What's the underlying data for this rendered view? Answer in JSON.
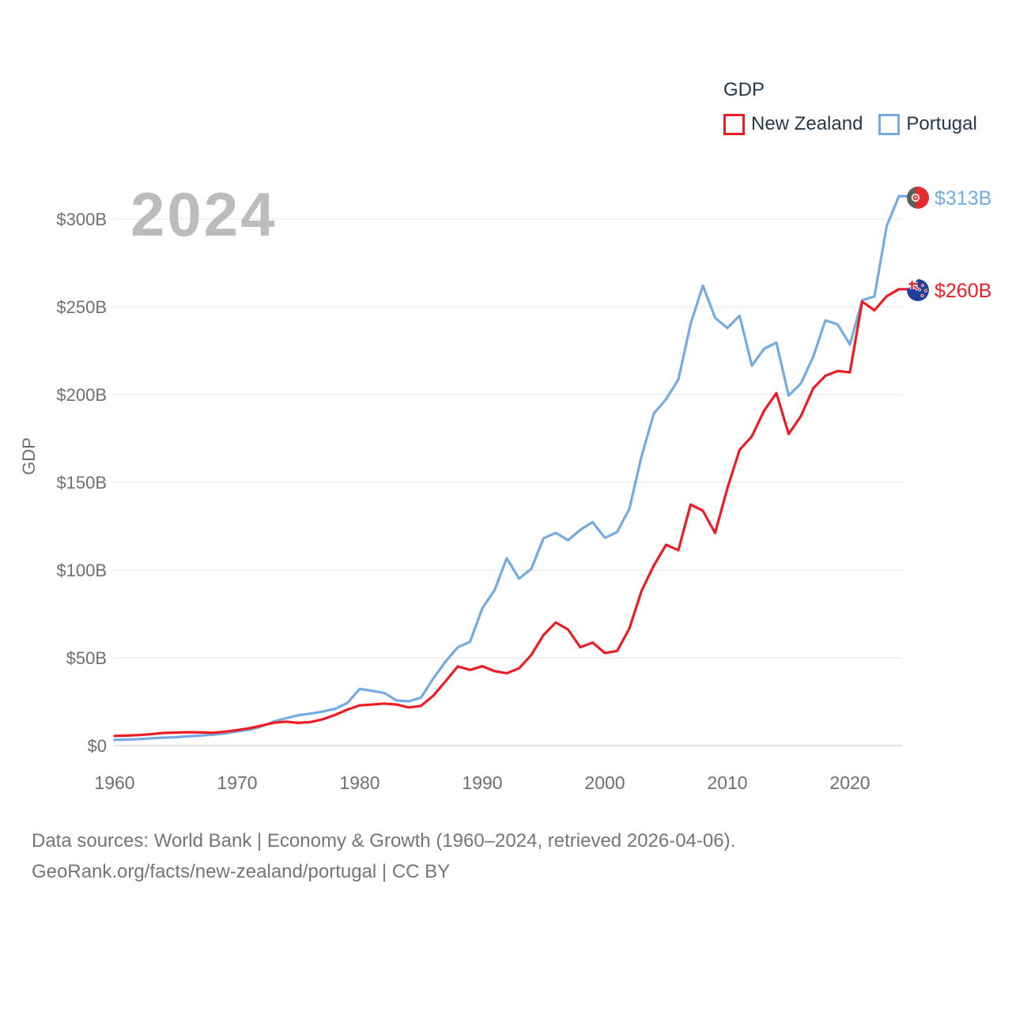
{
  "watermark_year": "2024",
  "legend": {
    "title": "GDP",
    "items": [
      {
        "label": "New Zealand",
        "color": "#ed1c24"
      },
      {
        "label": "Portugal",
        "color": "#74abe2"
      }
    ]
  },
  "y_axis": {
    "title": "GDP",
    "ticks": [
      "$0",
      "$50B",
      "$100B",
      "$150B",
      "$200B",
      "$250B",
      "$300B"
    ]
  },
  "x_axis": {
    "ticks": [
      "1960",
      "1970",
      "1980",
      "1990",
      "2000",
      "2010",
      "2020"
    ]
  },
  "end_labels": [
    {
      "series": "Portugal",
      "value_label": "$313B",
      "color": "#74abe2",
      "flag_icon": "portugal-flag-icon"
    },
    {
      "series": "New Zealand",
      "value_label": "$260B",
      "color": "#ed1c24",
      "flag_icon": "new-zealand-flag-icon"
    }
  ],
  "footer": {
    "line1": "Data sources: World Bank | Economy & Growth (1960–2024, retrieved 2026-04-06).",
    "line2": "GeoRank.org/facts/new-zealand/portugal | CC BY"
  },
  "colors": {
    "new_zealand": "#ed1c24",
    "portugal": "#74abe2",
    "grid": "#ededed",
    "zero_line": "#d9d9d9",
    "axis_text": "#6f6f6f",
    "legend_text": "#24384c",
    "watermark": "#bcbcbc",
    "footer_text": "#757575"
  },
  "chart_data": {
    "type": "line",
    "title": "GDP",
    "ylabel": "GDP",
    "xlabel": "",
    "grid": "horizontal",
    "legend_position": "top-right",
    "xlim": [
      1960,
      2024
    ],
    "ylim": [
      0,
      320
    ],
    "yticks": [
      0,
      50,
      100,
      150,
      200,
      250,
      300
    ],
    "xticks": [
      1960,
      1970,
      1980,
      1990,
      2000,
      2010,
      2020
    ],
    "x": [
      1960,
      1961,
      1962,
      1963,
      1964,
      1965,
      1966,
      1967,
      1968,
      1969,
      1970,
      1971,
      1972,
      1973,
      1974,
      1975,
      1976,
      1977,
      1978,
      1979,
      1980,
      1981,
      1982,
      1983,
      1984,
      1985,
      1986,
      1987,
      1988,
      1989,
      1990,
      1991,
      1992,
      1993,
      1994,
      1995,
      1996,
      1997,
      1998,
      1999,
      2000,
      2001,
      2002,
      2003,
      2004,
      2005,
      2006,
      2007,
      2008,
      2009,
      2010,
      2011,
      2012,
      2013,
      2014,
      2015,
      2016,
      2017,
      2018,
      2019,
      2020,
      2021,
      2022,
      2023,
      2024
    ],
    "series": [
      {
        "name": "New Zealand",
        "color": "#ed1c24",
        "unit": "billions USD",
        "values": [
          5.5,
          5.7,
          6.0,
          6.5,
          7.2,
          7.4,
          7.6,
          7.5,
          7.3,
          7.9,
          8.8,
          9.9,
          11.4,
          13.0,
          13.6,
          12.9,
          13.4,
          15.0,
          17.5,
          20.5,
          22.9,
          23.4,
          23.9,
          23.4,
          21.7,
          22.6,
          28.4,
          36.6,
          45.1,
          43.1,
          45.2,
          42.4,
          41.2,
          44.0,
          51.6,
          63.0,
          70.1,
          66.1,
          56.0,
          58.7,
          52.7,
          53.9,
          66.6,
          88.2,
          102.6,
          114.4,
          111.3,
          137.3,
          133.8,
          121.1,
          146.6,
          168.5,
          176.2,
          190.8,
          200.8,
          177.5,
          187.7,
          203.5,
          210.7,
          213.4,
          212.6,
          252.9,
          248.0,
          256.0,
          260.0
        ]
      },
      {
        "name": "Portugal",
        "color": "#74abe2",
        "unit": "billions USD",
        "values": [
          3.2,
          3.4,
          3.7,
          4.1,
          4.5,
          4.8,
          5.3,
          5.7,
          6.2,
          6.9,
          8.1,
          9.0,
          10.9,
          13.7,
          15.6,
          17.3,
          18.2,
          19.4,
          21.0,
          24.3,
          32.3,
          31.2,
          30.0,
          25.7,
          25.2,
          27.3,
          38.2,
          47.9,
          56.0,
          59.1,
          78.2,
          88.5,
          106.8,
          95.1,
          100.7,
          118.1,
          121.2,
          117.0,
          122.9,
          127.3,
          118.4,
          121.6,
          134.8,
          164.9,
          189.2,
          197.3,
          208.6,
          240.2,
          262.0,
          243.7,
          237.9,
          244.9,
          216.4,
          226.1,
          229.6,
          199.4,
          206.3,
          221.4,
          242.3,
          239.9,
          228.5,
          253.7,
          255.9,
          296.0,
          313.0
        ]
      }
    ],
    "end_values": {
      "Portugal": 313,
      "New Zealand": 260
    }
  }
}
